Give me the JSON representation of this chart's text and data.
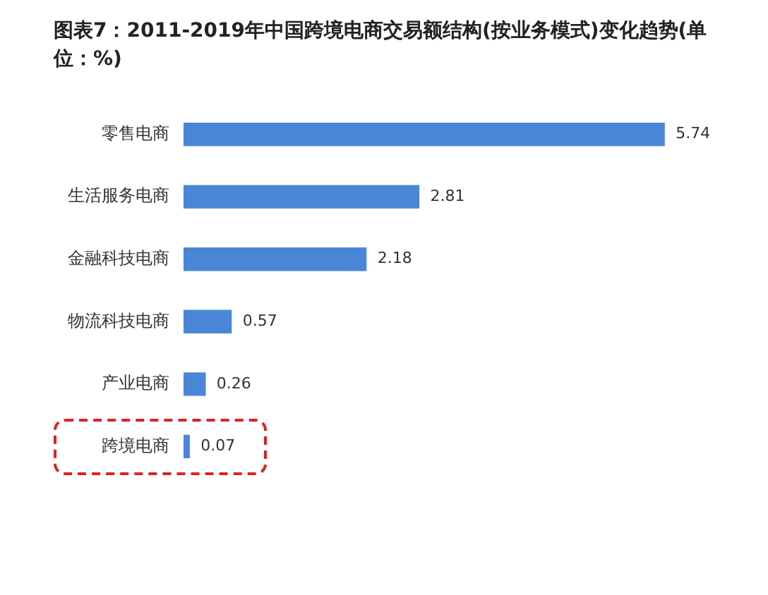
{
  "chart_data": {
    "type": "bar",
    "orientation": "horizontal",
    "title": "图表7：2011-2019年中国跨境电商交易额结构(按业务模式)变化趋势(单位：%)",
    "categories": [
      "零售电商",
      "生活服务电商",
      "金融科技电商",
      "物流科技电商",
      "产业电商",
      "跨境电商"
    ],
    "values": [
      5.74,
      2.81,
      2.18,
      0.57,
      0.26,
      0.07
    ],
    "color": "#4a86d8",
    "data_labels": true,
    "grid": false,
    "legend": false
  }
}
